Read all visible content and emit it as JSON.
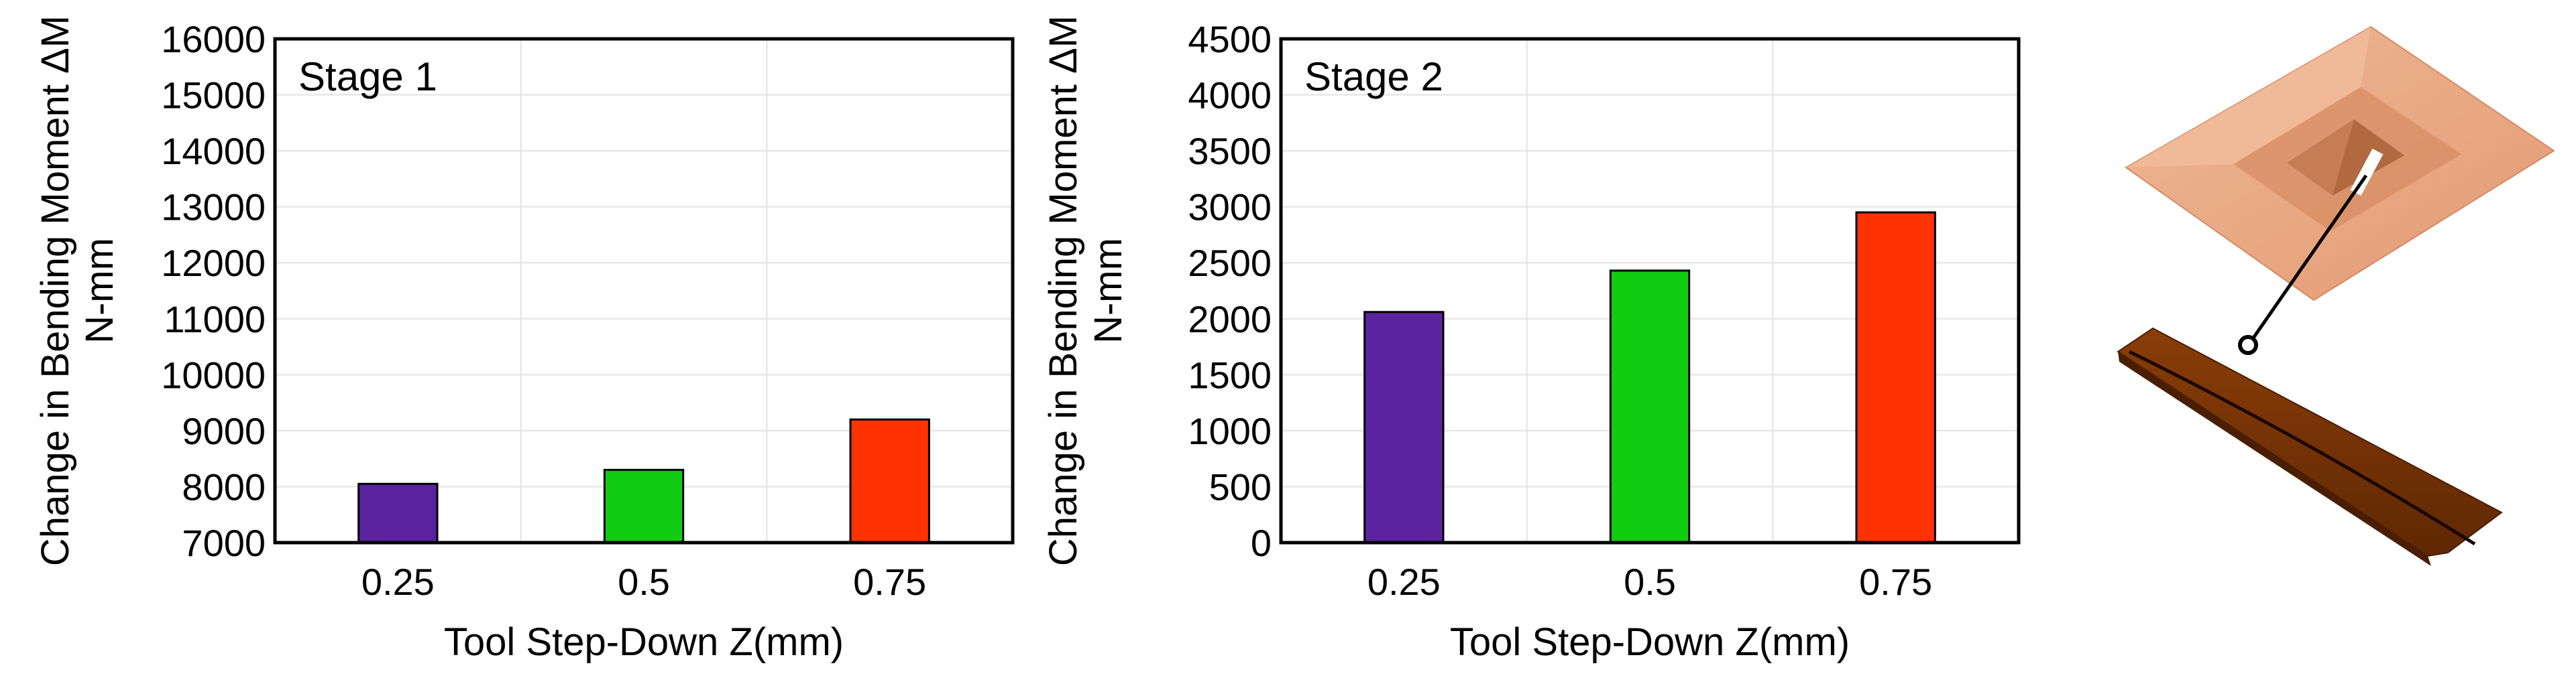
{
  "chart_data": [
    {
      "type": "bar",
      "panel_label": "Stage 1",
      "categories": [
        "0.25",
        "0.5",
        "0.75"
      ],
      "values": [
        8050,
        8300,
        9200
      ],
      "bar_colors": [
        "#5c23a0",
        "#11cc11",
        "#ff3300"
      ],
      "xlabel": "Tool Step-Down Z(mm)",
      "ylabel_line1": "Change in Bending Moment ΔM",
      "ylabel_line2": "N-mm",
      "ylim": [
        7000,
        16000
      ],
      "yticks": [
        7000,
        8000,
        9000,
        10000,
        11000,
        12000,
        13000,
        14000,
        15000,
        16000
      ],
      "grid": true
    },
    {
      "type": "bar",
      "panel_label": "Stage 2",
      "categories": [
        "0.25",
        "0.5",
        "0.75"
      ],
      "values": [
        2060,
        2430,
        2950
      ],
      "bar_colors": [
        "#5c23a0",
        "#11cc11",
        "#ff3300"
      ],
      "xlabel": "Tool Step-Down Z(mm)",
      "ylabel_line1": "Change in Bending Moment ΔM",
      "ylabel_line2": "N-mm",
      "ylim": [
        0,
        4500
      ],
      "yticks": [
        0,
        500,
        1000,
        1500,
        2000,
        2500,
        3000,
        3500,
        4000,
        4500
      ],
      "grid": true
    }
  ],
  "illustration": {
    "sheet_color": "#e6a07d",
    "strip_color": "#7a3405"
  }
}
